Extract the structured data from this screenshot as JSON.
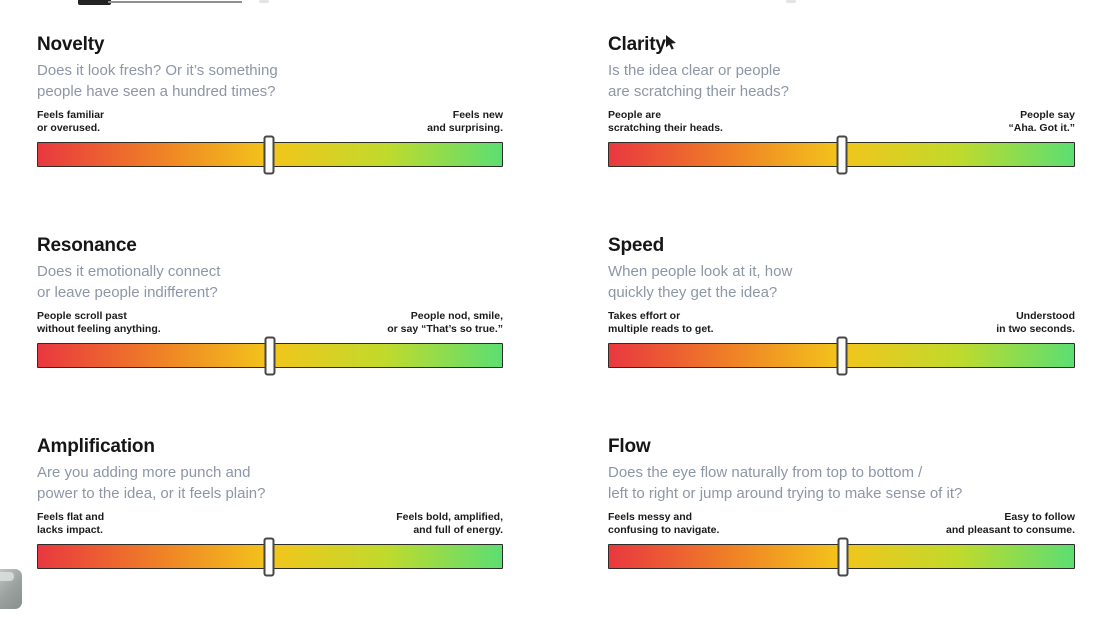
{
  "colors": {
    "page_bg": "#ffffff",
    "title_text": "#161616",
    "description_text": "#8d96a6",
    "endpoint_label_text": "#1b1b1b",
    "track_border": "#2e2c26",
    "handle_fill": "#fbfbf9",
    "handle_border": "#474747"
  },
  "slider": {
    "gradient": [
      "#e9383f",
      "#ef7d27",
      "#f3c51b",
      "#c0da2c",
      "#5cde72"
    ]
  },
  "cursor": {
    "near_section": "Clarity"
  },
  "sections": [
    {
      "id": "novelty",
      "title": "Novelty",
      "description_line1": "Does it look fresh? Or it’s something",
      "description_line2": "people have seen a hundred times?",
      "left_label_line1": "Feels familiar",
      "left_label_line2": "or overused.",
      "right_label_line1": "Feels new",
      "right_label_line2": "and surprising.",
      "handle_percent": 49.8
    },
    {
      "id": "clarity",
      "title": "Clarity",
      "description_line1": "Is the idea clear or people",
      "description_line2": "are scratching their heads?",
      "left_label_line1": "People are",
      "left_label_line2": "scratching their heads.",
      "right_label_line1": "People say",
      "right_label_line2": "“Aha. Got it.”",
      "handle_percent": 50.1
    },
    {
      "id": "resonance",
      "title": "Resonance",
      "description_line1": "Does it emotionally connect",
      "description_line2": "or leave people indifferent?",
      "left_label_line1": "People scroll past",
      "left_label_line2": "without feeling anything.",
      "right_label_line1": "People nod, smile,",
      "right_label_line2": "or say “That’s so true.”",
      "handle_percent": 50.0
    },
    {
      "id": "speed",
      "title": "Speed",
      "description_line1": "When people look at it, how",
      "description_line2": "quickly they get the idea?",
      "left_label_line1": "Takes effort or",
      "left_label_line2": "multiple reads to get.",
      "right_label_line1": "Understood",
      "right_label_line2": "in two seconds.",
      "handle_percent": 50.1
    },
    {
      "id": "amplification",
      "title": "Amplification",
      "description_line1": "Are you adding more punch and",
      "description_line2": "power to the idea, or it feels plain?",
      "left_label_line1": "Feels flat and",
      "left_label_line2": "lacks impact.",
      "right_label_line1": "Feels bold, amplified,",
      "right_label_line2": "and full of energy.",
      "handle_percent": 49.8
    },
    {
      "id": "flow",
      "title": "Flow",
      "description_line1": "Does the eye flow naturally from top to bottom /",
      "description_line2": "left to right or jump around trying to make sense of it?",
      "left_label_line1": "Feels messy and",
      "left_label_line2": "confusing to navigate.",
      "right_label_line1": "Easy to follow",
      "right_label_line2": "and pleasant to consume.",
      "handle_percent": 50.3
    }
  ]
}
